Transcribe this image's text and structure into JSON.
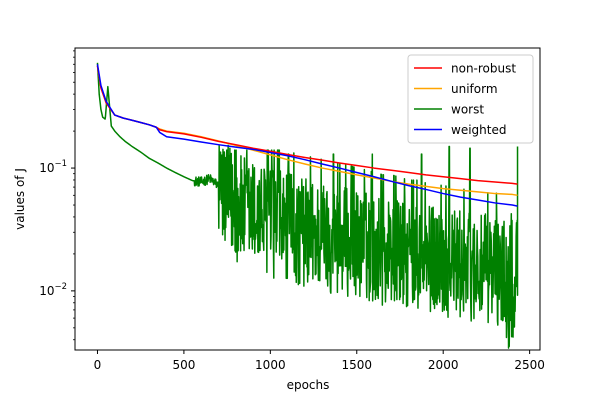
{
  "chart_data": {
    "type": "line",
    "title": "",
    "xlabel": "epochs",
    "ylabel": "values of J",
    "xscale": "linear",
    "yscale": "log",
    "xlim": [
      -130,
      2560
    ],
    "ylim": [
      0.0033,
      0.95
    ],
    "x_ticks": [
      0,
      500,
      1000,
      1500,
      2000,
      2500
    ],
    "x_tick_labels": [
      "0",
      "500",
      "1000",
      "1500",
      "2000",
      "2500"
    ],
    "y_ticks": [
      0.01,
      0.1
    ],
    "y_tick_labels": [
      {
        "base": "10",
        "exp": "−2"
      },
      {
        "base": "10",
        "exp": "−1"
      }
    ],
    "grid": false,
    "legend_position": "top-right",
    "series": [
      {
        "name": "non-robust",
        "color": "#ff0000",
        "x": [
          0,
          20,
          50,
          100,
          150,
          200,
          250,
          300,
          340,
          360,
          400,
          500,
          600,
          700,
          800,
          900,
          1000,
          1100,
          1200,
          1300,
          1400,
          1500,
          1600,
          1700,
          1800,
          1900,
          2000,
          2100,
          2200,
          2300,
          2400,
          2430
        ],
        "values": [
          0.68,
          0.45,
          0.34,
          0.27,
          0.255,
          0.245,
          0.235,
          0.225,
          0.215,
          0.205,
          0.198,
          0.19,
          0.178,
          0.165,
          0.155,
          0.145,
          0.137,
          0.129,
          0.122,
          0.116,
          0.11,
          0.105,
          0.1,
          0.096,
          0.092,
          0.088,
          0.085,
          0.082,
          0.079,
          0.077,
          0.075,
          0.074
        ]
      },
      {
        "name": "uniform",
        "color": "#ffa500",
        "x": [
          0,
          20,
          50,
          100,
          150,
          200,
          250,
          300,
          340,
          360,
          400,
          500,
          600,
          700,
          800,
          900,
          1000,
          1100,
          1200,
          1300,
          1400,
          1500,
          1600,
          1700,
          1800,
          1900,
          2000,
          2100,
          2200,
          2300,
          2400,
          2430
        ],
        "values": [
          0.68,
          0.45,
          0.34,
          0.27,
          0.255,
          0.245,
          0.235,
          0.225,
          0.215,
          0.208,
          0.2,
          0.192,
          0.18,
          0.166,
          0.153,
          0.14,
          0.128,
          0.117,
          0.108,
          0.1,
          0.094,
          0.088,
          0.083,
          0.078,
          0.074,
          0.071,
          0.068,
          0.066,
          0.064,
          0.062,
          0.061,
          0.06
        ]
      },
      {
        "name": "worst",
        "color": "#008000",
        "x": [
          0,
          10,
          20,
          30,
          45,
          60,
          80,
          100,
          130,
          160,
          200,
          250,
          300,
          350,
          400,
          450,
          500,
          550,
          600,
          650,
          700,
          720,
          760,
          800,
          850,
          900,
          950,
          1000,
          1050,
          1100,
          1150,
          1200,
          1250,
          1300,
          1350,
          1400,
          1450,
          1500,
          1550,
          1600,
          1650,
          1700,
          1750,
          1800,
          1850,
          1900,
          1950,
          2000,
          2050,
          2100,
          2150,
          2200,
          2250,
          2300,
          2350,
          2380,
          2400,
          2420,
          2430
        ],
        "values": [
          0.72,
          0.4,
          0.3,
          0.26,
          0.25,
          0.46,
          0.22,
          0.2,
          0.18,
          0.165,
          0.15,
          0.135,
          0.12,
          0.11,
          0.1,
          0.092,
          0.085,
          0.079,
          0.077,
          0.082,
          0.072,
          0.065,
          0.055,
          0.048,
          0.044,
          0.042,
          0.039,
          0.037,
          0.034,
          0.033,
          0.031,
          0.03,
          0.029,
          0.028,
          0.027,
          0.026,
          0.025,
          0.024,
          0.023,
          0.022,
          0.021,
          0.021,
          0.02,
          0.019,
          0.019,
          0.018,
          0.018,
          0.017,
          0.017,
          0.016,
          0.016,
          0.015,
          0.015,
          0.015,
          0.014,
          0.012,
          0.014,
          0.016,
          0.017
        ],
        "spike_epochs": [
          1105,
          1365,
          1590,
          1875,
          2035,
          2155
        ],
        "spike_values": [
          0.13,
          0.13,
          0.13,
          0.13,
          0.15,
          0.145
        ],
        "final_spike": [
          2430,
          0.15
        ]
      },
      {
        "name": "weighted",
        "color": "#0000ff",
        "x": [
          0,
          20,
          50,
          100,
          150,
          200,
          250,
          300,
          340,
          360,
          400,
          500,
          600,
          700,
          800,
          900,
          1000,
          1100,
          1200,
          1300,
          1400,
          1500,
          1600,
          1700,
          1800,
          1900,
          2000,
          2100,
          2200,
          2300,
          2400,
          2430
        ],
        "values": [
          0.7,
          0.47,
          0.35,
          0.27,
          0.255,
          0.245,
          0.235,
          0.225,
          0.215,
          0.195,
          0.18,
          0.172,
          0.163,
          0.155,
          0.148,
          0.142,
          0.134,
          0.126,
          0.117,
          0.108,
          0.1,
          0.092,
          0.085,
          0.078,
          0.072,
          0.067,
          0.062,
          0.058,
          0.055,
          0.052,
          0.05,
          0.049
        ]
      }
    ]
  }
}
